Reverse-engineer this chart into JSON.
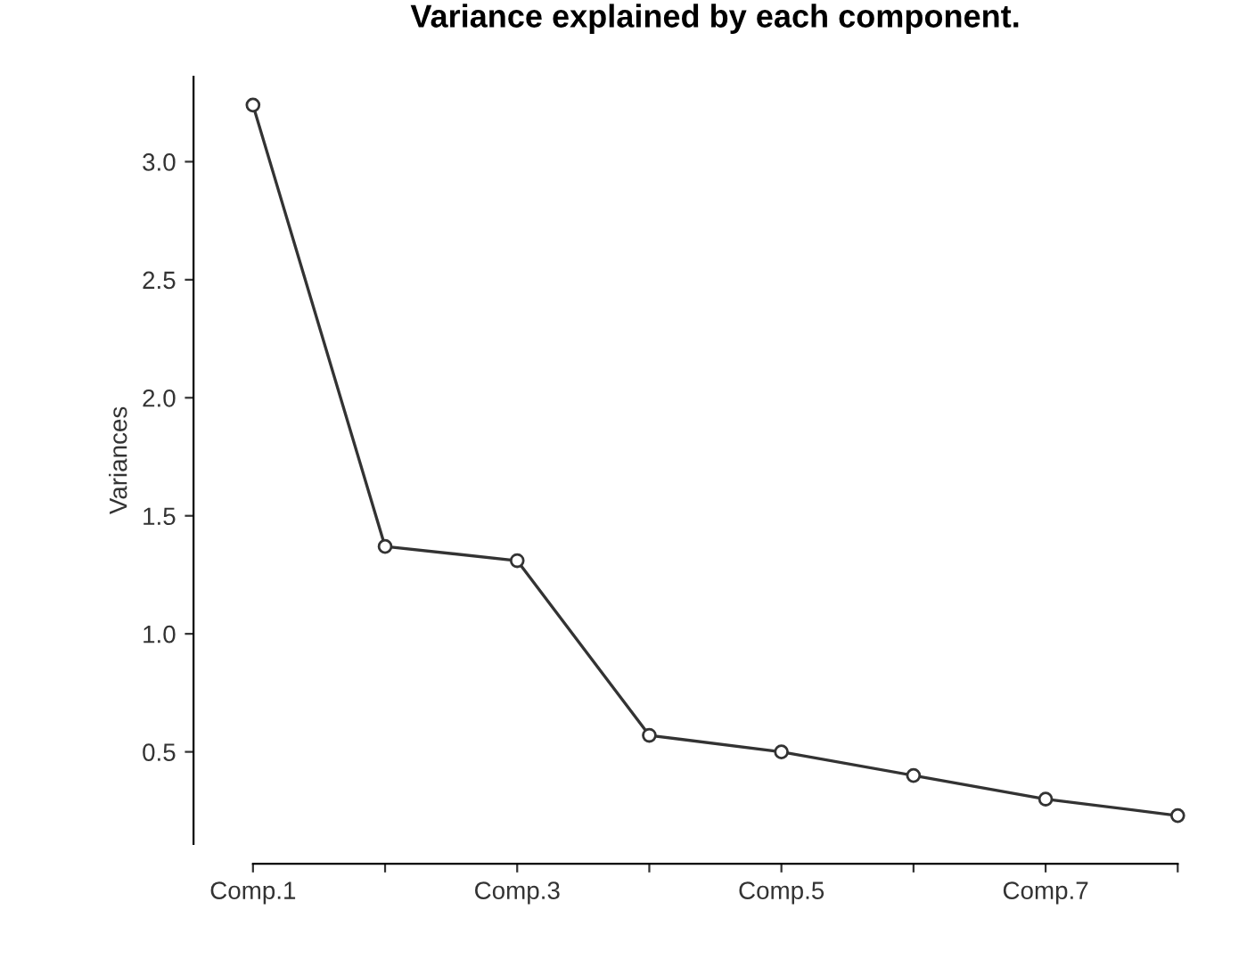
{
  "chart_data": {
    "type": "line",
    "title": "Variance explained by each component.",
    "ylabel": "Variances",
    "categories": [
      "Comp.1",
      null,
      "Comp.3",
      null,
      "Comp.5",
      null,
      "Comp.7",
      null
    ],
    "values": [
      3.24,
      1.37,
      1.31,
      0.57,
      0.5,
      0.4,
      0.3,
      0.23
    ],
    "color": "#333333",
    "marker": "circle",
    "line_style": "solid",
    "ylim": [
      0.11,
      3.36
    ],
    "yticks": [
      0.5,
      {
        "value": 1,
        "label": "1.0"
      },
      1.5,
      {
        "value": 2,
        "label": "2.0"
      },
      2.5,
      {
        "value": 3,
        "label": "3.0"
      }
    ],
    "grid": false,
    "legend": false
  }
}
